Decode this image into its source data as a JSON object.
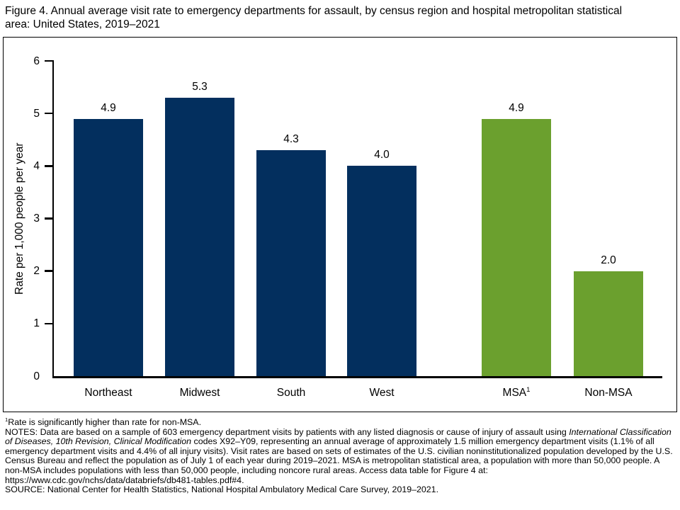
{
  "title": "Figure 4. Annual average visit rate to emergency departments for assault, by census region and hospital metropolitan statistical area: United States, 2019–2021",
  "chart_data": {
    "type": "bar",
    "title": "Figure 4. Annual average visit rate to emergency departments for assault, by census region and hospital metropolitan statistical area: United States, 2019–2021",
    "xlabel": "",
    "ylabel": "Rate per 1,000 people per year",
    "ylim": [
      0,
      6
    ],
    "yticks": [
      "0",
      "1",
      "2",
      "3",
      "4",
      "5",
      "6"
    ],
    "grid": false,
    "legend": "none",
    "categories": [
      "Northeast",
      "Midwest",
      "South",
      "West",
      "MSA",
      "Non-MSA"
    ],
    "category_superscripts": [
      "",
      "",
      "",
      "",
      "1",
      ""
    ],
    "values": [
      4.9,
      5.3,
      4.3,
      4.0,
      4.9,
      2.0
    ],
    "value_labels": [
      "4.9",
      "5.3",
      "4.3",
      "4.0",
      "4.9",
      "2.0"
    ],
    "bar_colors": [
      "#032f5e",
      "#032f5e",
      "#032f5e",
      "#032f5e",
      "#6ba02e",
      "#6ba02e"
    ],
    "colors": {
      "region_navy": "#032f5e",
      "msa_green": "#6ba02e",
      "axis_black": "#000000"
    }
  },
  "footnote": {
    "superscript": "1",
    "text": "Rate is significantly higher than rate for non-MSA."
  },
  "notes": {
    "label": "NOTES: ",
    "part1": "Data are based on a sample of 603 emergency department visits by patients with any listed diagnosis or cause of injury of assault using ",
    "italic": "International Classification of Diseases, 10th Revision, Clinical Modification",
    "part2": " codes X92–Y09, representing an annual average of approximately 1.5 million emergency department visits (1.1% of all emergency department visits and 4.4% of all injury visits). Visit rates are based on sets of estimates of the U.S. civilian noninstitutionalized population developed by the U.S. Census Bureau and reflect the population as of July 1 of each year during 2019–2021. MSA is metropolitan statistical area, a population with more than 50,000 people. A non-MSA includes populations with less than 50,000 people, including noncore rural areas. Access data table for Figure 4 at: https://www.cdc.gov/nchs/data/databriefs/db481-tables.pdf#4."
  },
  "source": "SOURCE: National Center for Health Statistics, National Hospital Ambulatory Medical Care Survey, 2019–2021."
}
